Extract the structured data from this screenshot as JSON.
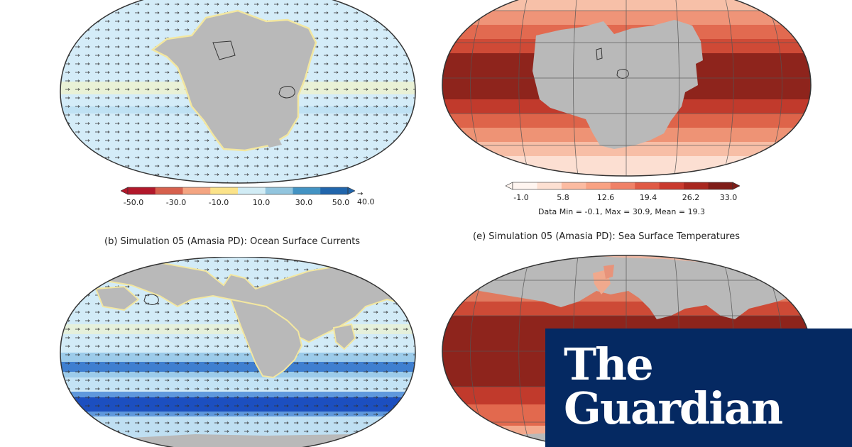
{
  "panels": {
    "top_left": {
      "colorbar": {
        "ticks": [
          "-50.0",
          "-30.0",
          "-10.0",
          "10.0",
          "30.0",
          "50.0"
        ],
        "ref_vector_label": "40.0",
        "colors": [
          "#b2182b",
          "#d6604d",
          "#f4a582",
          "#fbe38a",
          "#d1ecf5",
          "#92c5de",
          "#4393c3",
          "#2166ac"
        ]
      }
    },
    "top_right": {
      "colorbar": {
        "ticks": [
          "-1.0",
          "5.8",
          "12.6",
          "19.4",
          "26.2",
          "33.0"
        ],
        "colors": [
          "#fff5f0",
          "#fde0d2",
          "#fcbba1",
          "#f9a283",
          "#f08167",
          "#e05a45",
          "#c93a2e",
          "#a8271f",
          "#7f1d18"
        ]
      },
      "stats": "Data Min = -0.1, Max = 30.9, Mean = 19.3"
    },
    "bottom_left": {
      "caption": "(b) Simulation 05 (Amasia PD): Ocean Surface Currents"
    },
    "bottom_right": {
      "caption": "(e) Simulation 05 (Amasia PD): Sea Surface Temperatures"
    }
  },
  "brand": {
    "line1": "The",
    "line2": "Guardian",
    "background": "#052962"
  }
}
